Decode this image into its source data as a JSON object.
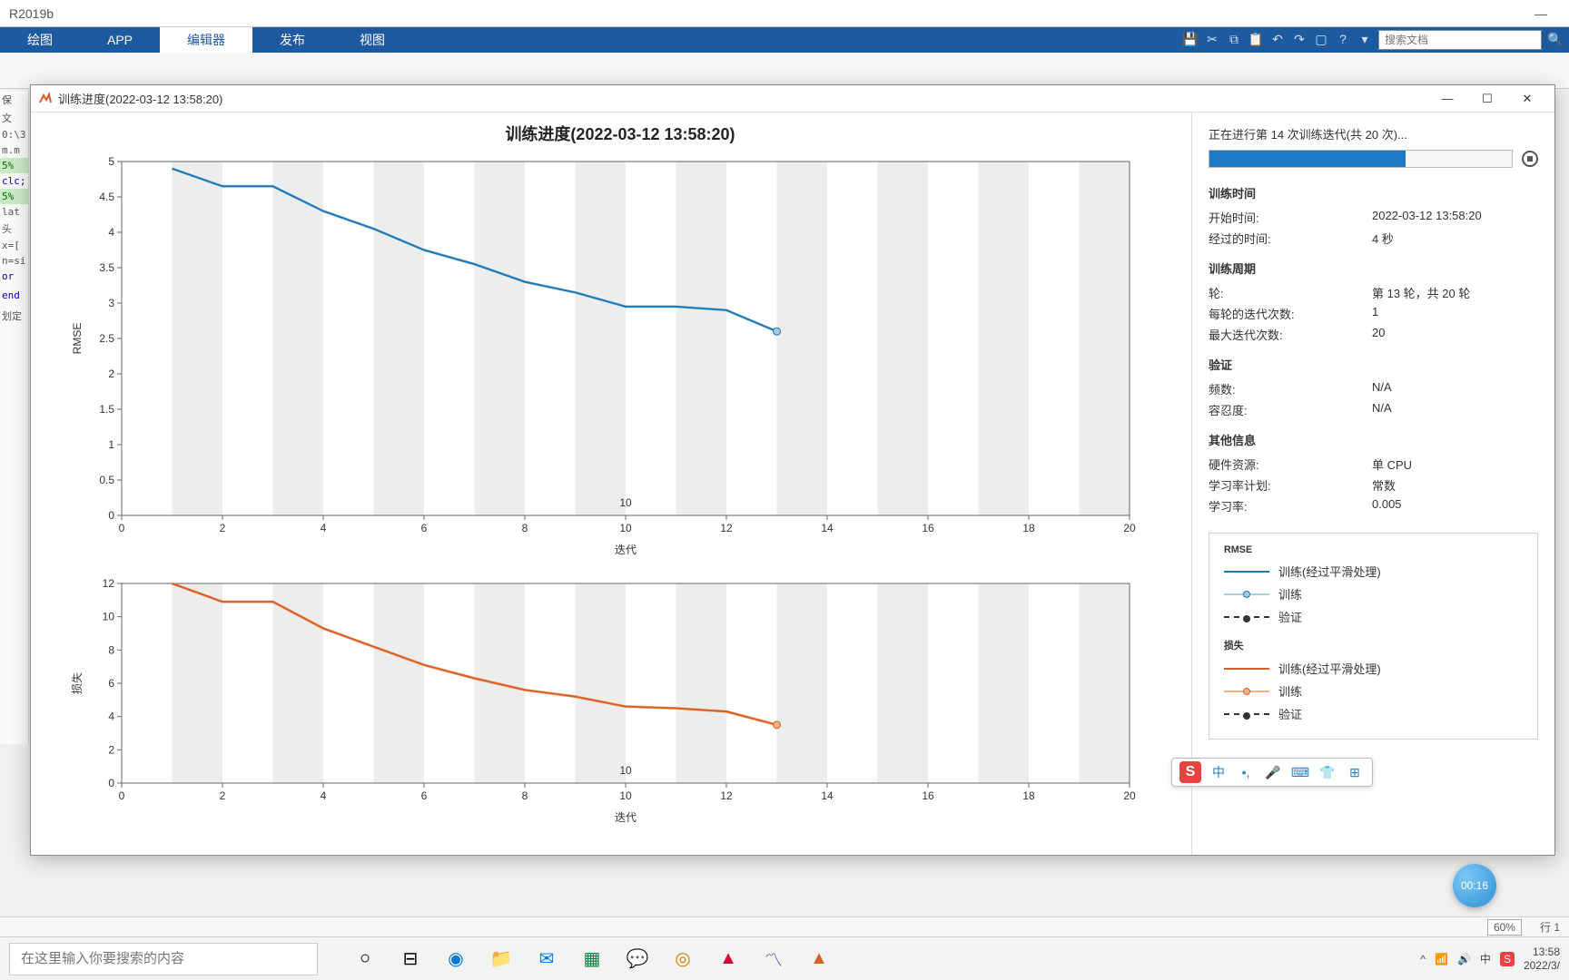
{
  "app_title": "R2019b",
  "tabs": {
    "plot": "绘图",
    "app": "APP",
    "editor": "编辑器",
    "publish": "发布",
    "view": "视图"
  },
  "search_placeholder": "搜索文档",
  "dialog": {
    "title": "训练进度(2022-03-12 13:58:20)",
    "chart_title": "训练进度(2022-03-12 13:58:20)"
  },
  "gutter": [
    "保",
    "文",
    "0:\\3",
    "m.m",
    "5%",
    "clc;",
    "5%",
    "lat",
    "头",
    "x=[",
    "n=si",
    "or",
    "",
    "end",
    "",
    "划定"
  ],
  "side": {
    "status": "正在进行第 14 次训练迭代(共 20 次)...",
    "progress_pct": 65,
    "sec_time": "训练时间",
    "start_k": "开始时间:",
    "start_v": "2022-03-12 13:58:20",
    "elapsed_k": "经过的时间:",
    "elapsed_v": "4 秒",
    "sec_cycle": "训练周期",
    "epoch_k": "轮:",
    "epoch_v": "第 13 轮，共 20 轮",
    "periter_k": "每轮的迭代次数:",
    "periter_v": "1",
    "maxiter_k": "最大迭代次数:",
    "maxiter_v": "20",
    "sec_val": "验证",
    "freq_k": "频数:",
    "freq_v": "N/A",
    "tol_k": "容忍度:",
    "tol_v": "N/A",
    "sec_other": "其他信息",
    "hw_k": "硬件资源:",
    "hw_v": "单 CPU",
    "lr_plan_k": "学习率计划:",
    "lr_plan_v": "常数",
    "lr_k": "学习率:",
    "lr_v": "0.005"
  },
  "chart1": {
    "type": "line",
    "ylabel": "RMSE",
    "xlabel": "迭代",
    "xlim": [
      0,
      20
    ],
    "ylim": [
      0,
      5
    ],
    "xticks": [
      0,
      2,
      4,
      6,
      8,
      10,
      12,
      14,
      16,
      18,
      20
    ],
    "yticks": [
      0,
      0.5,
      1,
      1.5,
      2,
      2.5,
      3,
      3.5,
      4,
      4.5,
      5
    ],
    "epoch_marker_x": 10,
    "epoch_marker_label": "10",
    "series": {
      "color": "#1f77b4",
      "light_color": "#a6cee3",
      "x": [
        1,
        2,
        3,
        4,
        5,
        6,
        7,
        8,
        9,
        10,
        11,
        12,
        13
      ],
      "y": [
        4.9,
        4.65,
        4.65,
        4.3,
        4.05,
        3.75,
        3.55,
        3.3,
        3.15,
        2.95,
        2.95,
        2.9,
        2.6
      ]
    }
  },
  "chart2": {
    "type": "line",
    "ylabel": "损失",
    "xlabel": "迭代",
    "xlim": [
      0,
      20
    ],
    "ylim": [
      0,
      12
    ],
    "xticks": [
      0,
      2,
      4,
      6,
      8,
      10,
      12,
      14,
      16,
      18,
      20
    ],
    "yticks": [
      0,
      2,
      4,
      6,
      8,
      10,
      12
    ],
    "epoch_marker_x": 10,
    "epoch_marker_label": "10",
    "series": {
      "color": "#d95f28",
      "light_color": "#f4b183",
      "x": [
        1,
        2,
        3,
        4,
        5,
        6,
        7,
        8,
        9,
        10,
        11,
        12,
        13
      ],
      "y": [
        12.0,
        10.9,
        10.9,
        9.3,
        8.2,
        7.1,
        6.3,
        5.6,
        5.2,
        4.6,
        4.5,
        4.3,
        3.5
      ]
    }
  },
  "legend": {
    "rmse_title": "RMSE",
    "loss_title": "损失",
    "train_smooth": "训练(经过平滑处理)",
    "train": "训练",
    "val": "验证"
  },
  "statusbar": {
    "zoom": "60%",
    "line": "行 1",
    "time": "13:58"
  },
  "taskbar": {
    "search_placeholder": "在这里输入你要搜索的内容",
    "time": "13:58",
    "date": "2022/3/"
  },
  "timer": "00:16",
  "ime": "中",
  "colors": {
    "ribbon": "#1e5aa0",
    "rmse": "#1f77b4",
    "loss": "#d95f28",
    "band": "#ededed"
  }
}
